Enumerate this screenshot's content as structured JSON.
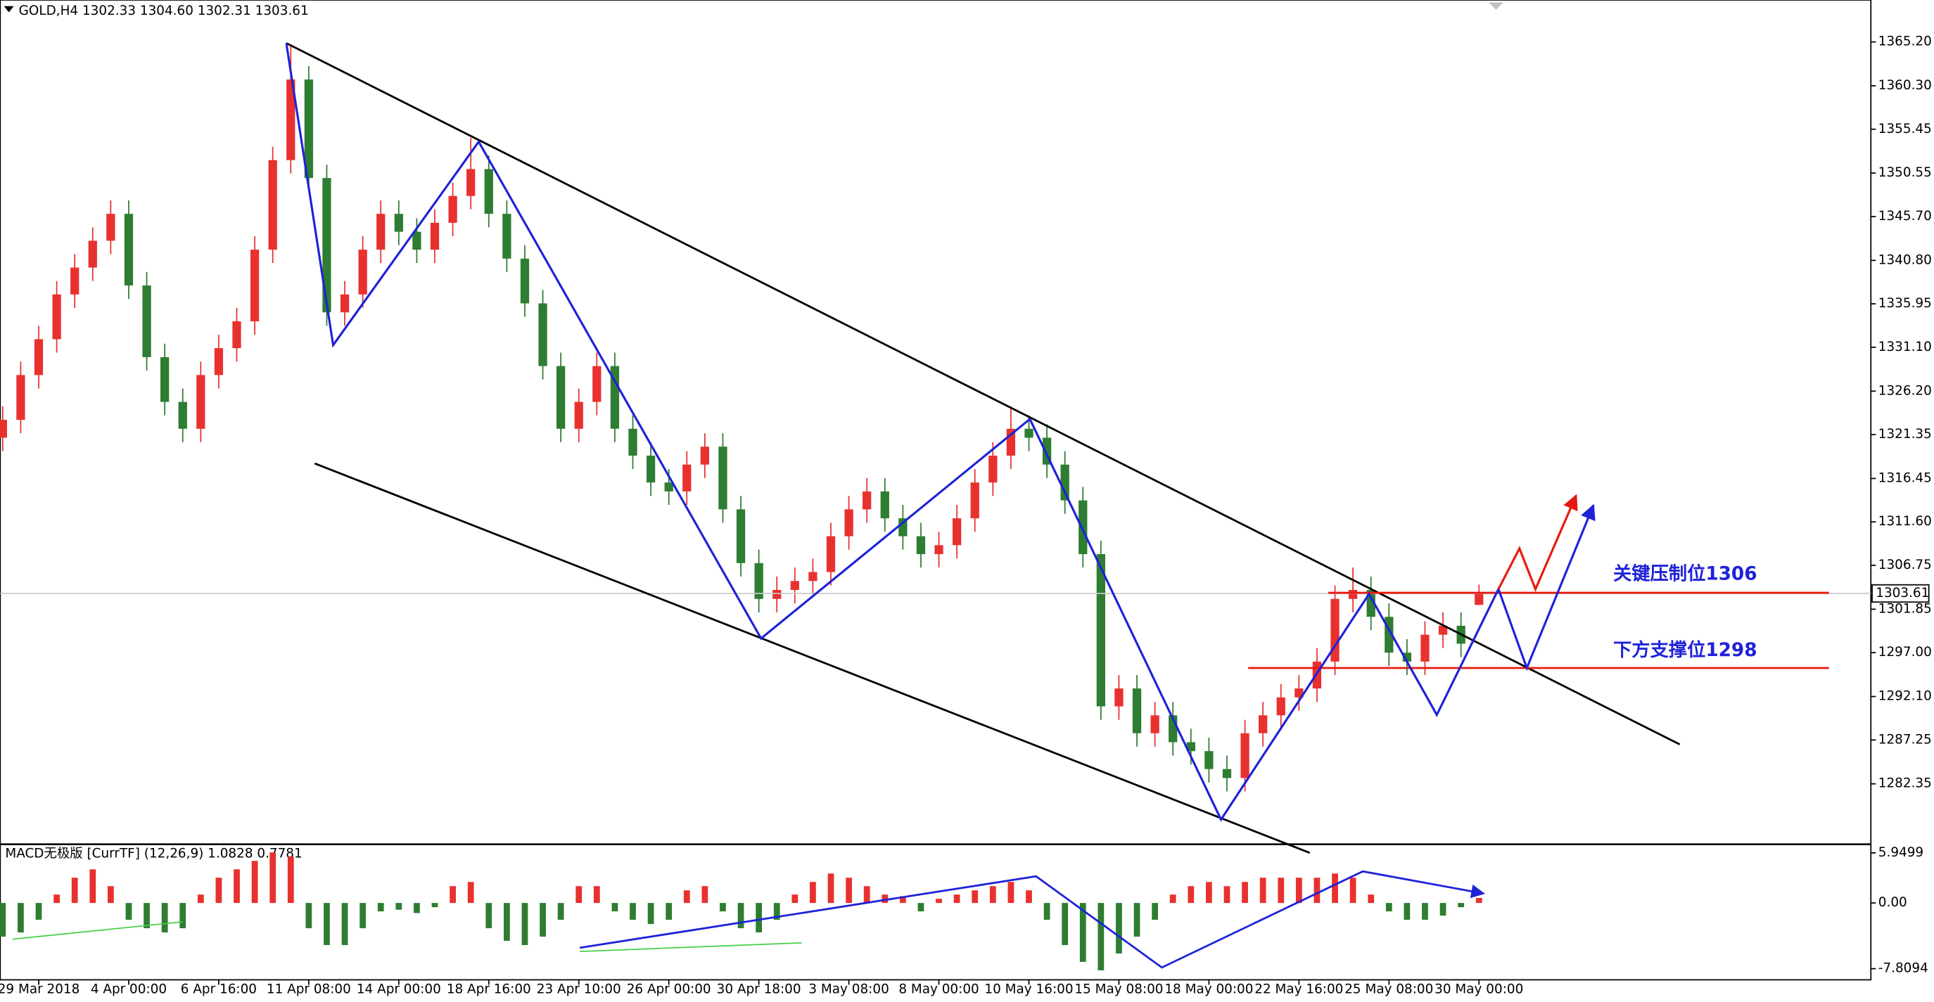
{
  "chart_data": [
    {
      "type": "candlestick",
      "title": "GOLD,H4  1302.33 1304.60 1302.31 1303.61",
      "annotations": [
        "关键压制位1306",
        "下方支撑位1298"
      ],
      "categories": [
        null,
        null,
        "29 Mar 2018",
        null,
        null,
        null,
        null,
        "4 Apr 00:00",
        null,
        null,
        null,
        null,
        "6 Apr 16:00",
        null,
        null,
        null,
        null,
        "11 Apr 08:00",
        null,
        null,
        null,
        null,
        "14 Apr 00:00",
        null,
        null,
        null,
        null,
        "18 Apr 16:00",
        null,
        null,
        null,
        null,
        "23 Apr 10:00",
        null,
        null,
        null,
        null,
        "26 Apr 00:00",
        null,
        null,
        null,
        null,
        "30 Apr 18:00",
        null,
        null,
        null,
        null,
        "3 May 08:00",
        null,
        null,
        null,
        null,
        "8 May 00:00",
        null,
        null,
        null,
        null,
        "10 May 16:00",
        null,
        null,
        null,
        null,
        "15 May 08:00",
        null,
        null,
        null,
        null,
        "18 May 00:00",
        null,
        null,
        null,
        null,
        "22 May 16:00",
        null,
        null,
        null,
        null,
        "25 May 08:00",
        null,
        null,
        null,
        null,
        "30 May 00:00"
      ],
      "open": [
        1321,
        1323,
        1328,
        1332,
        1337,
        1340,
        1343,
        1346,
        1338,
        1330,
        1325,
        1322,
        1328,
        1331,
        1334,
        1342,
        1352,
        1361,
        1350,
        1335,
        1337,
        1342,
        1346,
        1344,
        1342,
        1345,
        1348,
        1351,
        1346,
        1341,
        1336,
        1329,
        1322,
        1325,
        1329,
        1322,
        1319,
        1316,
        1315,
        1318,
        1320,
        1313,
        1307,
        1303,
        1304,
        1305,
        1306,
        1310,
        1313,
        1315,
        1312,
        1310,
        1308,
        1309,
        1312,
        1316,
        1319,
        1322,
        1321,
        1318,
        1314,
        1308,
        1291,
        1293,
        1288,
        1290,
        1287,
        1286,
        1284,
        1283,
        1288,
        1290,
        1292,
        1293,
        1296,
        1303,
        1304,
        1301,
        1297,
        1296,
        1299,
        1300,
        1302.33
      ],
      "high": [
        1324.5,
        1329.5,
        1333.5,
        1338.5,
        1341.5,
        1344.5,
        1347.5,
        1347.5,
        1339.5,
        1331.5,
        1326.5,
        1329.5,
        1332.5,
        1335.5,
        1343.5,
        1353.5,
        1364.8,
        1362.5,
        1351.5,
        1338.5,
        1343.5,
        1347.5,
        1347.5,
        1345.5,
        1346.5,
        1349.5,
        1354.5,
        1352.5,
        1347.5,
        1342.5,
        1337.5,
        1330.5,
        1326.5,
        1330.5,
        1330.5,
        1323.5,
        1320.5,
        1317.5,
        1319.5,
        1321.5,
        1321.5,
        1314.5,
        1308.5,
        1305.5,
        1306.5,
        1307.5,
        1311.5,
        1314.5,
        1316.5,
        1316.5,
        1313.5,
        1311.5,
        1310.5,
        1313.5,
        1317.5,
        1320.5,
        1324.5,
        1323.5,
        1322.5,
        1319.5,
        1315.5,
        1309.5,
        1294.5,
        1294.5,
        1291.5,
        1291.5,
        1288.5,
        1287.5,
        1285.5,
        1289.5,
        1291.5,
        1293.5,
        1294.5,
        1297.5,
        1304.5,
        1306.5,
        1305.5,
        1302.5,
        1298.5,
        1300.5,
        1301.5,
        1301.5,
        1304.6
      ],
      "low": [
        1319.5,
        1321.5,
        1326.5,
        1330.5,
        1335.5,
        1338.5,
        1341.5,
        1336.5,
        1328.5,
        1323.5,
        1320.5,
        1320.5,
        1326.5,
        1329.5,
        1332.5,
        1340.5,
        1350.5,
        1348.5,
        1333.5,
        1333.5,
        1335.5,
        1340.5,
        1342.5,
        1340.5,
        1340.5,
        1343.5,
        1346.5,
        1344.5,
        1339.5,
        1334.5,
        1327.5,
        1320.5,
        1320.5,
        1323.5,
        1320.5,
        1317.5,
        1314.5,
        1313.5,
        1313.5,
        1316.5,
        1311.5,
        1305.5,
        1301.5,
        1301.5,
        1302.5,
        1303.5,
        1304.5,
        1308.5,
        1311.5,
        1310.5,
        1308.5,
        1306.5,
        1306.5,
        1307.5,
        1310.5,
        1314.5,
        1317.5,
        1319.5,
        1316.5,
        1312.5,
        1306.5,
        1289.5,
        1289.5,
        1286.5,
        1286.5,
        1285.5,
        1284.5,
        1282.5,
        1281.5,
        1281.5,
        1286.5,
        1288.5,
        1290.5,
        1291.5,
        1294.5,
        1301.5,
        1299.5,
        1295.5,
        1294.5,
        1294.5,
        1297.5,
        1296.5,
        1302.31
      ],
      "close": [
        1323,
        1328,
        1332,
        1337,
        1340,
        1343,
        1346,
        1338,
        1330,
        1325,
        1322,
        1328,
        1331,
        1334,
        1342,
        1352,
        1361,
        1350,
        1335,
        1337,
        1342,
        1346,
        1344,
        1342,
        1345,
        1348,
        1351,
        1346,
        1341,
        1336,
        1329,
        1322,
        1325,
        1329,
        1322,
        1319,
        1316,
        1315,
        1318,
        1320,
        1313,
        1307,
        1303,
        1304,
        1305,
        1306,
        1310,
        1313,
        1315,
        1312,
        1310,
        1308,
        1309,
        1312,
        1316,
        1319,
        1322,
        1321,
        1318,
        1314,
        1308,
        1291,
        1293,
        1288,
        1290,
        1287,
        1286,
        1284,
        1283,
        1288,
        1290,
        1292,
        1293,
        1296,
        1303,
        1304,
        1301,
        1297,
        1296,
        1299,
        1300,
        1298,
        1303.61
      ],
      "up_color": "#e8312f",
      "down_color": "#2e7d32",
      "ylim": [
        1275.74,
        1369.88
      ],
      "yticks": [
        {
          "value": 1365.2,
          "label": "1365.20"
        },
        {
          "value": 1360.3,
          "label": "1360.30"
        },
        {
          "value": 1355.45,
          "label": "1355.45"
        },
        {
          "value": 1350.55,
          "label": "1350.55"
        },
        {
          "value": 1345.7,
          "label": "1345.70"
        },
        {
          "value": 1340.8,
          "label": "1340.80"
        },
        {
          "value": 1335.95,
          "label": "1335.95"
        },
        {
          "value": 1331.1,
          "label": "1331.10"
        },
        {
          "value": 1326.2,
          "label": "1326.20"
        },
        {
          "value": 1321.35,
          "label": "1321.35"
        },
        {
          "value": 1316.45,
          "label": "1316.45"
        },
        {
          "value": 1311.6,
          "label": "1311.60"
        },
        {
          "value": 1306.75,
          "label": "1306.75"
        },
        {
          "value": 1301.85,
          "label": "1301.85"
        },
        {
          "value": 1297,
          "label": "1297.00"
        },
        {
          "value": 1292.1,
          "label": "1292.10"
        },
        {
          "value": 1287.25,
          "label": "1287.25"
        },
        {
          "value": 1282.35,
          "label": "1282.35"
        }
      ]
    },
    {
      "type": "bar",
      "title": "MACD无极版 [CurrTF] (12,26,9) 1.0828 0.7781",
      "values": [
        -4,
        -3.5,
        -2,
        1,
        3,
        4,
        2,
        -2,
        -3,
        -3.5,
        -3,
        1,
        3,
        4,
        5,
        6,
        5.5,
        -3,
        -5,
        -5,
        -3,
        -1,
        -0.8,
        -1.2,
        -0.5,
        2,
        2.5,
        -3,
        -4.5,
        -5,
        -4,
        -2,
        2,
        2,
        -1,
        -2,
        -2.5,
        -2,
        1.5,
        2,
        -1,
        -3,
        -3.5,
        -2,
        1,
        2.5,
        3.5,
        3,
        2,
        1,
        0.8,
        -1,
        0.5,
        1,
        1.5,
        2,
        2.5,
        1.5,
        -2,
        -5,
        -7,
        -8,
        -6,
        -4,
        -2,
        1,
        2,
        2.5,
        2,
        2.5,
        3,
        3,
        3,
        3,
        3.5,
        3,
        1,
        -1,
        -2,
        -2,
        -1.5,
        -0.5,
        0.6
      ],
      "pos_color": "#e8312f",
      "neg_color": "#2e7d32",
      "ylim": [
        -9.13,
        6.83
      ],
      "yticks": [
        5.9499,
        {
          "value": 0,
          "label": "0.00"
        },
        -7.8094
      ]
    }
  ]
}
